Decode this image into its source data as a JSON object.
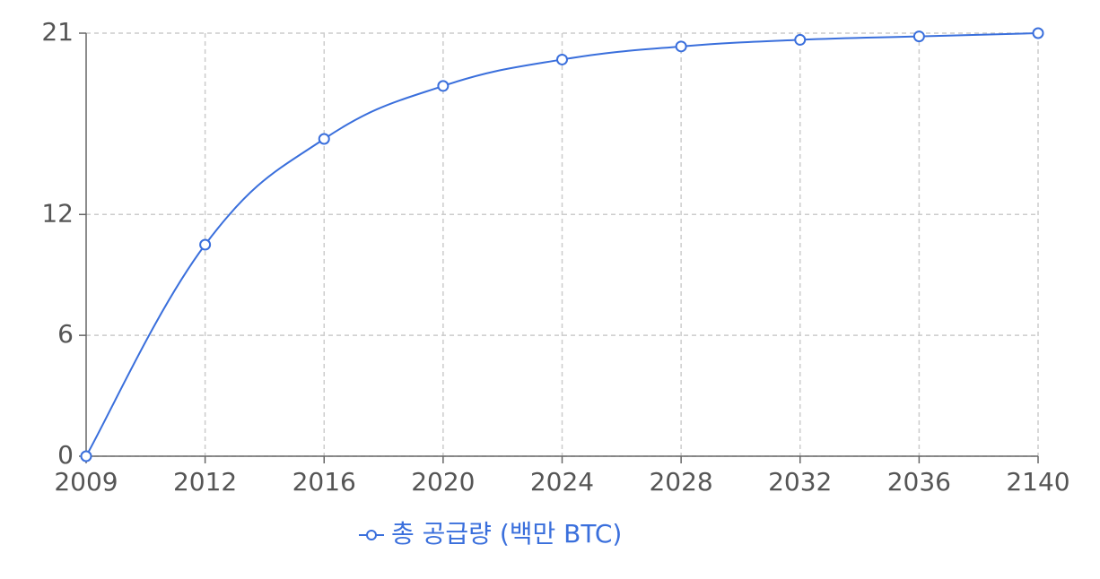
{
  "chart_data": {
    "type": "line",
    "categories": [
      "2009",
      "2012",
      "2016",
      "2020",
      "2024",
      "2028",
      "2032",
      "2036",
      "2140"
    ],
    "series": [
      {
        "name": "총 공급량 (백만 BTC)",
        "color": "#3a6fdc",
        "values": [
          0,
          10.5,
          15.75,
          18.38,
          19.69,
          20.34,
          20.67,
          20.84,
          21
        ]
      }
    ],
    "ylim": [
      0,
      21
    ],
    "yticks": [
      0,
      6,
      12,
      21
    ],
    "grid": true,
    "legend": "bottom"
  }
}
